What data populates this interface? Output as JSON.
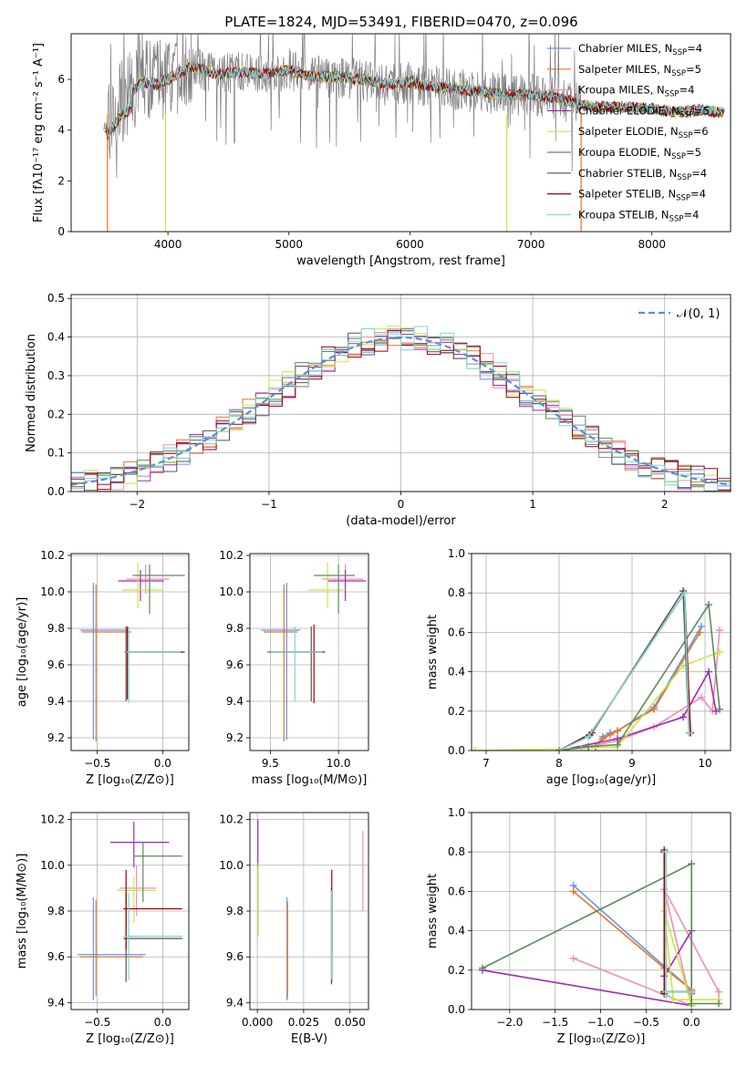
{
  "figure_title": "PLATE=1824, MJD=53491, FIBERID=0470, z=0.096",
  "colors": {
    "Chabrier MILES": "#6495ed",
    "Salpeter MILES": "#e87722",
    "Kroupa MILES": "#f28db2",
    "Chabrier ELODIE": "#a02ab3",
    "Salpeter ELODIE": "#c6e847",
    "Kroupa ELODIE": "#5b8c5a",
    "Chabrier STELIB": "#555555",
    "Salpeter STELIB": "#a00000",
    "Kroupa STELIB": "#7fd6d6",
    "data": "#808080",
    "normal": "#5a8fd8"
  },
  "chart_data": [
    {
      "id": "spectrum",
      "type": "line",
      "title": "PLATE=1824, MJD=53491, FIBERID=0470, z=0.096",
      "xlabel": "wavelength [Angstrom, rest frame]",
      "ylabel": "Flux [fλ10⁻¹⁷ erg cm⁻² s⁻¹ A⁻¹]",
      "xlim": [
        3200,
        8650
      ],
      "ylim": [
        0,
        7.8
      ],
      "xticks": [
        4000,
        5000,
        6000,
        7000,
        8000
      ],
      "yticks": [
        0,
        2,
        4,
        6
      ],
      "legend": [
        "Chabrier MILES, N_SSP=4",
        "Salpeter MILES, N_SSP=5",
        "Kroupa MILES, N_SSP=4",
        "Chabrier ELODIE, N_SSP=5",
        "Salpeter ELODIE, N_SSP=6",
        "Kroupa ELODIE, N_SSP=5",
        "Chabrier STELIB, N_SSP=4",
        "Salpeter STELIB, N_SSP=4",
        "Kroupa STELIB, N_SSP=4"
      ],
      "legend_position": "upper-right",
      "data_range": [
        3500,
        7420
      ],
      "continuum": [
        [
          3500,
          4.4
        ],
        [
          3600,
          5.1
        ],
        [
          3700,
          5.5
        ],
        [
          3800,
          5.9
        ],
        [
          3900,
          5.8
        ],
        [
          4000,
          6.0
        ],
        [
          4100,
          6.3
        ],
        [
          4200,
          6.5
        ],
        [
          4400,
          6.2
        ],
        [
          4600,
          6.3
        ],
        [
          4800,
          6.2
        ],
        [
          5000,
          6.4
        ],
        [
          5200,
          6.1
        ],
        [
          5400,
          6.1
        ],
        [
          5600,
          6.0
        ],
        [
          5800,
          5.8
        ],
        [
          6000,
          5.9
        ],
        [
          6200,
          5.7
        ],
        [
          6400,
          5.6
        ],
        [
          6600,
          5.5
        ],
        [
          6800,
          5.4
        ],
        [
          7000,
          5.4
        ],
        [
          7200,
          5.3
        ],
        [
          7420,
          5.0
        ],
        [
          7600,
          4.9
        ],
        [
          7800,
          4.9
        ],
        [
          8000,
          4.85
        ],
        [
          8200,
          4.7
        ],
        [
          8400,
          4.8
        ],
        [
          8600,
          4.7
        ]
      ],
      "absorption_dips": [
        [
          3934,
          2.0
        ],
        [
          3969,
          1.8
        ],
        [
          3950,
          0.0
        ],
        [
          4861,
          4.8
        ],
        [
          5175,
          5.0
        ],
        [
          6800,
          0.0
        ],
        [
          7400,
          0.0
        ]
      ]
    },
    {
      "id": "residuals",
      "type": "area",
      "xlabel": "(data-model)/error",
      "ylabel": "Normed distribution",
      "xlim": [
        -2.5,
        2.5
      ],
      "ylim": [
        0,
        0.51
      ],
      "xticks": [
        -2,
        -1,
        0,
        1,
        2
      ],
      "yticks": [
        0.0,
        0.1,
        0.2,
        0.3,
        0.4,
        0.5
      ],
      "bin_width": 0.1,
      "legend": [
        "𝒩(0, 1)"
      ],
      "legend_position": "upper-right",
      "grid": true
    },
    {
      "id": "age-vs-Z",
      "type": "scatter",
      "xlabel": "Z [log₁₀(Z/Z⊙)]",
      "ylabel": "age  [log₁₀(age/yr)]",
      "xlim": [
        -0.7,
        0.2
      ],
      "ylim": [
        9.13,
        10.21
      ],
      "xticks": [
        -0.5,
        0.0
      ],
      "yticks": [
        9.2,
        9.4,
        9.6,
        9.8,
        10.0,
        10.2
      ],
      "grid": true,
      "points": [
        {
          "m": "Chabrier MILES",
          "x": -0.53,
          "y": 9.79,
          "xlo": -0.63,
          "xhi": -0.26,
          "ylo": 9.19,
          "yhi": 10.05
        },
        {
          "m": "Salpeter MILES",
          "x": -0.51,
          "y": 9.78,
          "xlo": -0.62,
          "xhi": -0.24,
          "ylo": 9.18,
          "yhi": 10.04
        },
        {
          "m": "Kroupa MILES",
          "x": -0.13,
          "y": 10.07,
          "xlo": -0.28,
          "xhi": 0.05,
          "ylo": 9.99,
          "yhi": 10.15
        },
        {
          "m": "Chabrier ELODIE",
          "x": -0.17,
          "y": 10.06,
          "xlo": -0.34,
          "xhi": 0.01,
          "ylo": 9.95,
          "yhi": 10.12
        },
        {
          "m": "Salpeter ELODIE",
          "x": -0.19,
          "y": 10.01,
          "xlo": -0.31,
          "xhi": 0.0,
          "ylo": 9.91,
          "yhi": 10.16
        },
        {
          "m": "Kroupa ELODIE",
          "x": -0.1,
          "y": 10.09,
          "xlo": -0.23,
          "xhi": 0.17,
          "ylo": 9.88,
          "yhi": 10.15
        },
        {
          "m": "Chabrier STELIB",
          "x": -0.28,
          "y": 9.67,
          "xlo": -0.29,
          "xhi": 0.17,
          "ylo": 9.4,
          "yhi": 9.81
        },
        {
          "m": "Salpeter STELIB",
          "x": -0.27,
          "y": 9.67,
          "xlo": -0.28,
          "xhi": 0.16,
          "ylo": 9.41,
          "yhi": 9.81
        },
        {
          "m": "Kroupa STELIB",
          "x": -0.26,
          "y": 9.67,
          "xlo": -0.28,
          "xhi": 0.14,
          "ylo": 9.39,
          "yhi": 9.81
        }
      ]
    },
    {
      "id": "age-vs-mass",
      "type": "scatter",
      "xlabel": "mass [log₁₀(M/M⊙)]",
      "ylabel": "",
      "xlim": [
        9.35,
        10.22
      ],
      "ylim": [
        9.13,
        10.21
      ],
      "xticks": [
        9.5,
        10.0
      ],
      "yticks": [
        9.2,
        9.4,
        9.6,
        9.8,
        10.0,
        10.2
      ],
      "grid": true,
      "points": [
        {
          "m": "Chabrier MILES",
          "x": 9.62,
          "y": 9.79,
          "xlo": 9.43,
          "xhi": 9.72,
          "ylo": 9.19,
          "yhi": 10.05
        },
        {
          "m": "Salpeter MILES",
          "x": 9.6,
          "y": 9.78,
          "xlo": 9.45,
          "xhi": 9.7,
          "ylo": 9.18,
          "yhi": 10.04
        },
        {
          "m": "Kroupa MILES",
          "x": 10.05,
          "y": 10.07,
          "xlo": 9.88,
          "xhi": 10.18,
          "ylo": 9.99,
          "yhi": 10.15
        },
        {
          "m": "Chabrier ELODIE",
          "x": 10.05,
          "y": 10.06,
          "xlo": 9.92,
          "xhi": 10.2,
          "ylo": 9.95,
          "yhi": 10.12
        },
        {
          "m": "Salpeter ELODIE",
          "x": 9.92,
          "y": 10.01,
          "xlo": 9.78,
          "xhi": 10.05,
          "ylo": 9.91,
          "yhi": 10.16
        },
        {
          "m": "Kroupa ELODIE",
          "x": 10.0,
          "y": 10.09,
          "xlo": 9.82,
          "xhi": 10.12,
          "ylo": 9.88,
          "yhi": 10.15
        },
        {
          "m": "Chabrier STELIB",
          "x": 9.8,
          "y": 9.67,
          "xlo": 9.48,
          "xhi": 9.88,
          "ylo": 9.4,
          "yhi": 9.81
        },
        {
          "m": "Salpeter STELIB",
          "x": 9.82,
          "y": 9.67,
          "xlo": 9.5,
          "xhi": 9.9,
          "ylo": 9.39,
          "yhi": 9.82
        },
        {
          "m": "Kroupa STELIB",
          "x": 9.68,
          "y": 9.67,
          "xlo": 9.5,
          "xhi": 9.88,
          "ylo": 9.4,
          "yhi": 9.81
        }
      ]
    },
    {
      "id": "mass-weight-vs-age",
      "type": "line",
      "xlabel": "age  [log₁₀(age/yr)]",
      "ylabel": "mass weight",
      "xlim": [
        6.8,
        10.35
      ],
      "ylim": [
        0,
        1
      ],
      "xticks": [
        7,
        8,
        9,
        10
      ],
      "yticks": [
        0.0,
        0.2,
        0.4,
        0.6,
        0.8,
        1.0
      ],
      "grid": true,
      "series": [
        {
          "m": "Chabrier MILES",
          "x": [
            8.5,
            8.6,
            8.7,
            8.8,
            9.3,
            9.95
          ],
          "y": [
            0.02,
            0.07,
            0.09,
            0.1,
            0.22,
            0.63
          ]
        },
        {
          "m": "Salpeter MILES",
          "x": [
            8.5,
            8.6,
            8.7,
            8.8,
            9.3,
            9.93
          ],
          "y": [
            0.02,
            0.06,
            0.08,
            0.1,
            0.21,
            0.6
          ]
        },
        {
          "m": "Kroupa MILES",
          "x": [
            8.4,
            8.8,
            9.3,
            9.95,
            10.1,
            10.2
          ],
          "y": [
            0.02,
            0.05,
            0.12,
            0.27,
            0.2,
            0.61
          ]
        },
        {
          "m": "Chabrier ELODIE",
          "x": [
            8.0,
            8.8,
            9.7,
            10.05,
            10.15
          ],
          "y": [
            0.0,
            0.06,
            0.17,
            0.4,
            0.2
          ]
        },
        {
          "m": "Salpeter ELODIE",
          "x": [
            6.85,
            8.3,
            8.8,
            9.7,
            10.2
          ],
          "y": [
            0.0,
            0.01,
            0.02,
            0.43,
            0.5
          ]
        },
        {
          "m": "Kroupa ELODIE",
          "x": [
            8.0,
            8.4,
            8.8,
            10.05,
            10.2
          ],
          "y": [
            0.0,
            0.02,
            0.03,
            0.74,
            0.21
          ]
        },
        {
          "m": "Chabrier STELIB",
          "x": [
            8.0,
            8.45,
            9.7,
            9.78
          ],
          "y": [
            0.0,
            0.09,
            0.81,
            0.09
          ]
        },
        {
          "m": "Salpeter STELIB",
          "x": [
            8.0,
            8.42,
            9.72,
            9.8
          ],
          "y": [
            0.0,
            0.08,
            0.8,
            0.09
          ]
        },
        {
          "m": "Kroupa STELIB",
          "x": [
            8.0,
            8.4,
            9.72,
            9.78
          ],
          "y": [
            0.0,
            0.07,
            0.8,
            0.09
          ]
        }
      ]
    },
    {
      "id": "mass-vs-Z",
      "type": "scatter",
      "xlabel": "Z [log₁₀(Z/Z⊙)]",
      "ylabel": "mass [log₁₀(M/M⊙)]",
      "xlim": [
        -0.7,
        0.2
      ],
      "ylim": [
        9.37,
        10.23
      ],
      "xticks": [
        -0.5,
        0.0
      ],
      "yticks": [
        9.4,
        9.6,
        9.8,
        10.0,
        10.2
      ],
      "grid": true,
      "points": [
        {
          "m": "Chabrier MILES",
          "x": -0.53,
          "y": 9.61,
          "xlo": -0.65,
          "xhi": -0.13,
          "ylo": 9.41,
          "yhi": 9.86
        },
        {
          "m": "Salpeter MILES",
          "x": -0.51,
          "y": 9.6,
          "xlo": -0.63,
          "xhi": -0.15,
          "ylo": 9.43,
          "yhi": 9.85
        },
        {
          "m": "Kroupa MILES",
          "x": -0.2,
          "y": 9.9,
          "xlo": -0.33,
          "xhi": -0.05,
          "ylo": 9.78,
          "yhi": 10.0
        },
        {
          "m": "Chabrier ELODIE",
          "x": -0.22,
          "y": 10.1,
          "xlo": -0.4,
          "xhi": 0.05,
          "ylo": 9.99,
          "yhi": 10.19
        },
        {
          "m": "Salpeter ELODIE",
          "x": -0.22,
          "y": 9.89,
          "xlo": -0.35,
          "xhi": -0.05,
          "ylo": 9.75,
          "yhi": 9.95
        },
        {
          "m": "Kroupa ELODIE",
          "x": -0.15,
          "y": 10.04,
          "xlo": -0.22,
          "xhi": 0.15,
          "ylo": 9.84,
          "yhi": 10.1
        },
        {
          "m": "Chabrier STELIB",
          "x": -0.28,
          "y": 9.68,
          "xlo": -0.3,
          "xhi": 0.15,
          "ylo": 9.49,
          "yhi": 9.88
        },
        {
          "m": "Salpeter STELIB",
          "x": -0.28,
          "y": 9.81,
          "xlo": -0.3,
          "xhi": 0.15,
          "ylo": 9.63,
          "yhi": 9.98
        },
        {
          "m": "Kroupa STELIB",
          "x": -0.26,
          "y": 9.69,
          "xlo": -0.3,
          "xhi": 0.15,
          "ylo": 9.5,
          "yhi": 9.88
        }
      ]
    },
    {
      "id": "mass-vs-EBV",
      "type": "scatter",
      "xlabel": "E(B-V)",
      "ylabel": "",
      "xlim": [
        -0.004,
        0.06
      ],
      "ylim": [
        9.37,
        10.23
      ],
      "xticks": [
        0.0,
        0.025,
        0.05
      ],
      "xtick_labels": [
        "0.000",
        "0.025",
        "0.050"
      ],
      "yticks": [
        9.4,
        9.6,
        9.8,
        10.0,
        10.2
      ],
      "grid": true,
      "points": [
        {
          "m": "Chabrier MILES",
          "x": 0.016,
          "y": 9.62,
          "ylo": 9.41,
          "yhi": 9.86
        },
        {
          "m": "Salpeter MILES",
          "x": 0.0163,
          "y": 9.61,
          "ylo": 9.42,
          "yhi": 9.84
        },
        {
          "m": "Kroupa MILES",
          "x": 0.057,
          "y": 9.96,
          "ylo": 9.8,
          "yhi": 10.15
        },
        {
          "m": "Chabrier ELODIE",
          "x": 0.0003,
          "y": 10.1,
          "ylo": 9.99,
          "yhi": 10.2
        },
        {
          "m": "Salpeter ELODIE",
          "x": 0.0005,
          "y": 9.89,
          "ylo": 9.69,
          "yhi": 10.01
        },
        {
          "m": "Kroupa ELODIE",
          "x": 0.0403,
          "y": 9.69,
          "ylo": 9.49,
          "yhi": 9.89
        },
        {
          "m": "Chabrier STELIB",
          "x": 0.04,
          "y": 9.68,
          "ylo": 9.48,
          "yhi": 9.9
        },
        {
          "m": "Salpeter STELIB",
          "x": 0.0402,
          "y": 9.81,
          "ylo": 9.62,
          "yhi": 9.98
        },
        {
          "m": "Kroupa STELIB",
          "x": 0.0401,
          "y": 9.7,
          "ylo": 9.5,
          "yhi": 9.89
        }
      ]
    },
    {
      "id": "mass-weight-vs-Z",
      "type": "line",
      "xlabel": "Z [log₁₀(Z/Z⊙)]",
      "ylabel": "mass weight",
      "xlim": [
        -2.42,
        0.43
      ],
      "ylim": [
        0,
        1
      ],
      "xticks": [
        -2.0,
        -1.5,
        -1.0,
        -0.5,
        0.0
      ],
      "yticks": [
        0.0,
        0.2,
        0.4,
        0.6,
        0.8,
        1.0
      ],
      "grid": true,
      "series": [
        {
          "m": "Chabrier MILES",
          "x": [
            -1.3,
            -0.3,
            0.0,
            0.0
          ],
          "y": [
            0.63,
            0.22,
            0.1,
            0.08
          ]
        },
        {
          "m": "Salpeter MILES",
          "x": [
            -1.3,
            -0.3,
            0.0,
            0.0
          ],
          "y": [
            0.6,
            0.21,
            0.1,
            0.08
          ]
        },
        {
          "m": "Kroupa MILES",
          "x": [
            -1.3,
            0.0,
            -0.3,
            0.3,
            0.3
          ],
          "y": [
            0.26,
            0.02,
            0.61,
            0.09,
            0.05
          ]
        },
        {
          "m": "Chabrier ELODIE",
          "x": [
            -2.3,
            0.0,
            0.0,
            -0.3
          ],
          "y": [
            0.2,
            0.02,
            0.4,
            0.17
          ]
        },
        {
          "m": "Salpeter ELODIE",
          "x": [
            0.0,
            -0.3,
            -0.2,
            0.3
          ],
          "y": [
            0.02,
            0.5,
            0.05,
            0.05
          ]
        },
        {
          "m": "Kroupa ELODIE",
          "x": [
            -2.3,
            0.0,
            0.0,
            0.3
          ],
          "y": [
            0.21,
            0.74,
            0.03,
            0.03
          ]
        },
        {
          "m": "Chabrier STELIB",
          "x": [
            -0.3,
            -0.3,
            -0.3,
            0.0
          ],
          "y": [
            0.09,
            0.81,
            0.09,
            0.09
          ]
        },
        {
          "m": "Salpeter STELIB",
          "x": [
            -0.3,
            -0.3,
            -0.3,
            0.0
          ],
          "y": [
            0.08,
            0.8,
            0.09,
            0.09
          ]
        },
        {
          "m": "Kroupa STELIB",
          "x": [
            -0.28,
            -0.28,
            -0.28,
            0.0
          ],
          "y": [
            0.07,
            0.8,
            0.09,
            0.09
          ]
        }
      ]
    }
  ]
}
